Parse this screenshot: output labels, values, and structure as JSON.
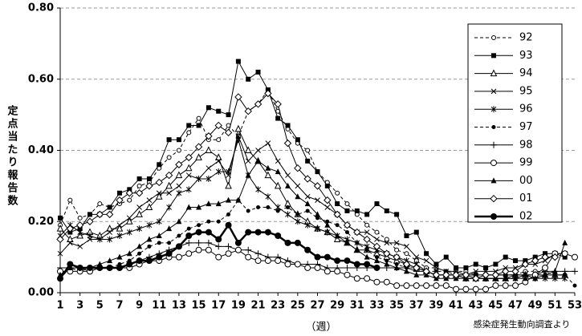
{
  "chart_data": {
    "type": "line",
    "y_axis_title": "定点当たり報告数",
    "x_axis_title": "（週）",
    "source": "感染症発生動向調査より",
    "xlim": [
      1,
      53
    ],
    "xticks": [
      1,
      3,
      5,
      7,
      9,
      11,
      13,
      15,
      17,
      19,
      21,
      23,
      25,
      27,
      29,
      31,
      33,
      35,
      37,
      39,
      41,
      43,
      45,
      47,
      49,
      51,
      53
    ],
    "ylim": [
      0,
      0.8
    ],
    "yticks": [
      {
        "value": 0,
        "label": "0.00"
      },
      {
        "value": 0.2,
        "label": "0.20"
      },
      {
        "value": 0.4,
        "label": "0.40"
      },
      {
        "value": 0.6,
        "label": "0.60"
      },
      {
        "value": 0.8,
        "label": "0.80"
      }
    ],
    "grid": true,
    "legend_position": "right",
    "x": [
      1,
      2,
      3,
      4,
      5,
      6,
      7,
      8,
      9,
      10,
      11,
      12,
      13,
      14,
      15,
      16,
      17,
      18,
      19,
      20,
      21,
      22,
      23,
      24,
      25,
      26,
      27,
      28,
      29,
      30,
      31,
      32,
      33,
      34,
      35,
      36,
      37,
      38,
      39,
      40,
      41,
      42,
      43,
      44,
      45,
      46,
      47,
      48,
      49,
      50,
      51,
      52,
      53
    ],
    "series": [
      {
        "name": "92",
        "color": "#000000",
        "marker": "circle-open-small",
        "dash": true,
        "width": 1,
        "values": [
          0.19,
          0.26,
          0.21,
          0.22,
          0.25,
          0.24,
          0.25,
          0.26,
          0.3,
          0.31,
          0.35,
          0.38,
          0.4,
          0.45,
          0.49,
          0.43,
          0.43,
          0.47,
          0.44,
          0.51,
          0.53,
          0.57,
          0.51,
          0.46,
          0.42,
          0.4,
          0.34,
          0.31,
          0.28,
          0.25,
          0.22,
          0.19,
          0.17,
          0.15,
          0.12,
          0.11,
          0.09,
          0.07,
          0.07,
          0.06,
          0.06,
          0.06,
          0.05,
          0.05,
          0.05,
          0.05,
          0.05,
          0.06,
          0.06,
          0.06,
          0.05,
          0.05,
          null
        ]
      },
      {
        "name": "93",
        "color": "#000000",
        "marker": "square-filled",
        "dash": false,
        "width": 1,
        "values": [
          0.21,
          0.17,
          0.18,
          0.22,
          0.22,
          0.24,
          0.28,
          0.29,
          0.32,
          0.32,
          0.36,
          0.43,
          0.43,
          0.47,
          0.47,
          0.52,
          0.51,
          0.5,
          0.65,
          0.6,
          0.62,
          0.57,
          0.49,
          0.47,
          0.43,
          0.37,
          0.34,
          0.3,
          0.25,
          0.23,
          0.23,
          0.22,
          0.25,
          0.23,
          0.22,
          0.16,
          0.17,
          0.11,
          0.08,
          0.1,
          0.07,
          0.07,
          0.08,
          0.07,
          0.08,
          0.1,
          0.09,
          0.09,
          0.1,
          0.11,
          0.11,
          0.1,
          null
        ]
      },
      {
        "name": "94",
        "color": "#000000",
        "marker": "triangle-open",
        "dash": false,
        "width": 1,
        "values": [
          0.18,
          0.15,
          0.16,
          0.17,
          0.16,
          0.18,
          0.18,
          0.2,
          0.22,
          0.24,
          0.27,
          0.3,
          0.33,
          0.35,
          0.38,
          0.4,
          0.38,
          0.3,
          0.46,
          0.4,
          0.37,
          0.33,
          0.3,
          0.25,
          0.22,
          0.2,
          0.18,
          0.17,
          0.15,
          0.14,
          0.12,
          0.12,
          0.11,
          0.1,
          0.09,
          0.08,
          0.07,
          0.06,
          0.05,
          0.05,
          0.05,
          0.04,
          0.04,
          0.04,
          0.04,
          0.04,
          0.05,
          0.05,
          0.05,
          0.05,
          0.05,
          0.05,
          null
        ]
      },
      {
        "name": "95",
        "color": "#000000",
        "marker": "x",
        "dash": false,
        "width": 1,
        "values": [
          0.11,
          0.14,
          0.13,
          0.15,
          0.15,
          0.17,
          0.19,
          0.21,
          0.24,
          0.26,
          0.28,
          0.28,
          0.3,
          0.33,
          0.32,
          0.35,
          0.37,
          0.33,
          0.44,
          0.37,
          0.4,
          0.42,
          0.37,
          0.33,
          0.3,
          0.27,
          0.26,
          0.24,
          0.22,
          0.19,
          0.17,
          0.17,
          0.15,
          0.14,
          0.14,
          0.13,
          0.1,
          0.09,
          0.07,
          0.06,
          0.06,
          0.05,
          0.06,
          0.06,
          0.06,
          0.07,
          0.07,
          0.08,
          0.08,
          0.09,
          0.11,
          0.11,
          null
        ]
      },
      {
        "name": "96",
        "color": "#000000",
        "marker": "asterisk",
        "dash": false,
        "width": 1,
        "values": [
          0.16,
          0.19,
          0.17,
          0.16,
          0.15,
          0.15,
          0.16,
          0.17,
          0.18,
          0.19,
          0.2,
          0.24,
          0.28,
          0.29,
          0.32,
          0.32,
          0.34,
          0.34,
          0.43,
          0.33,
          0.29,
          0.27,
          0.24,
          0.22,
          0.2,
          0.19,
          0.18,
          0.17,
          0.16,
          0.15,
          0.14,
          0.13,
          0.12,
          0.11,
          0.1,
          0.09,
          0.08,
          0.06,
          0.05,
          0.05,
          0.05,
          0.04,
          0.04,
          0.04,
          0.04,
          0.04,
          0.04,
          0.05,
          0.04,
          0.04,
          0.04,
          0.04,
          null
        ]
      },
      {
        "name": "97",
        "color": "#000000",
        "marker": "circle-filled",
        "dash": true,
        "width": 1,
        "values": [
          0.04,
          0.07,
          0.06,
          0.07,
          0.07,
          0.07,
          0.08,
          0.09,
          0.11,
          0.13,
          0.14,
          0.14,
          0.16,
          0.18,
          0.19,
          0.2,
          0.2,
          0.22,
          0.26,
          0.23,
          0.24,
          0.24,
          0.23,
          0.24,
          0.22,
          0.23,
          0.21,
          0.2,
          0.19,
          0.17,
          0.14,
          0.12,
          0.1,
          0.09,
          0.08,
          0.07,
          0.07,
          0.06,
          0.06,
          0.06,
          0.05,
          0.05,
          0.05,
          0.05,
          0.05,
          0.05,
          0.05,
          0.05,
          0.05,
          0.05,
          0.05,
          0.05,
          0.02
        ]
      },
      {
        "name": "98",
        "color": "#000000",
        "marker": "plus",
        "dash": false,
        "width": 1,
        "values": [
          0.07,
          0.07,
          0.07,
          0.06,
          0.07,
          0.07,
          0.07,
          0.08,
          0.09,
          0.1,
          0.11,
          0.12,
          0.13,
          0.14,
          0.14,
          0.14,
          0.13,
          0.13,
          0.12,
          0.12,
          0.11,
          0.1,
          0.1,
          0.09,
          0.08,
          0.08,
          0.08,
          0.07,
          0.07,
          0.07,
          0.07,
          0.07,
          0.07,
          0.07,
          0.07,
          0.07,
          0.06,
          0.06,
          0.05,
          0.05,
          0.05,
          0.05,
          0.05,
          0.05,
          0.05,
          0.05,
          0.05,
          0.05,
          0.05,
          0.06,
          0.06,
          0.06,
          0.06
        ]
      },
      {
        "name": "99",
        "color": "#000000",
        "marker": "circle-open",
        "dash": false,
        "width": 1,
        "values": [
          0.06,
          0.06,
          0.06,
          0.06,
          0.07,
          0.07,
          0.07,
          0.07,
          0.08,
          0.09,
          0.09,
          0.1,
          0.1,
          0.11,
          0.12,
          0.12,
          0.1,
          0.11,
          0.12,
          0.1,
          0.09,
          0.09,
          0.09,
          0.08,
          0.08,
          0.07,
          0.07,
          0.06,
          0.06,
          0.05,
          0.04,
          0.04,
          0.03,
          0.03,
          0.02,
          0.02,
          0.02,
          0.02,
          0.02,
          0.02,
          0.01,
          0.01,
          0.01,
          0.01,
          0.02,
          0.02,
          0.02,
          0.03,
          0.05,
          0.07,
          0.11,
          0.11,
          0.1
        ]
      },
      {
        "name": "00",
        "color": "#000000",
        "marker": "triangle-filled",
        "dash": false,
        "width": 1,
        "values": [
          0.05,
          0.07,
          0.07,
          0.07,
          0.08,
          0.09,
          0.1,
          0.11,
          0.13,
          0.15,
          0.16,
          0.18,
          0.2,
          0.24,
          0.24,
          0.25,
          0.25,
          0.26,
          0.26,
          0.33,
          0.37,
          0.35,
          0.34,
          0.3,
          0.27,
          0.25,
          0.22,
          0.19,
          0.16,
          0.14,
          0.12,
          0.1,
          0.09,
          0.08,
          0.07,
          0.06,
          0.05,
          0.05,
          0.04,
          0.04,
          0.04,
          0.04,
          0.04,
          0.04,
          0.04,
          0.04,
          0.04,
          0.04,
          0.04,
          0.05,
          0.06,
          0.14,
          null
        ]
      },
      {
        "name": "01",
        "color": "#000000",
        "marker": "diamond-open",
        "dash": false,
        "width": 1,
        "values": [
          0.15,
          0.18,
          0.19,
          0.2,
          0.22,
          0.22,
          0.26,
          0.28,
          0.28,
          0.3,
          0.31,
          0.33,
          0.36,
          0.38,
          0.41,
          0.44,
          0.47,
          0.45,
          0.55,
          0.51,
          0.53,
          0.56,
          0.53,
          0.42,
          0.35,
          0.32,
          0.3,
          0.26,
          0.22,
          0.19,
          0.17,
          0.15,
          0.13,
          0.11,
          0.1,
          0.08,
          0.07,
          0.06,
          0.05,
          0.05,
          0.05,
          0.05,
          0.04,
          0.05,
          0.05,
          0.06,
          0.06,
          0.08,
          0.09,
          0.1,
          0.1,
          null,
          null
        ]
      },
      {
        "name": "02",
        "color": "#000000",
        "marker": "circle-filled-large",
        "dash": false,
        "width": 2.5,
        "values": [
          0.04,
          0.08,
          0.07,
          0.07,
          0.07,
          0.07,
          0.07,
          0.08,
          0.09,
          0.09,
          0.1,
          0.11,
          0.13,
          0.16,
          0.17,
          0.17,
          0.15,
          0.19,
          0.14,
          0.17,
          0.17,
          0.17,
          0.16,
          0.14,
          0.14,
          0.12,
          0.1,
          0.1,
          0.09,
          0.09,
          0.08,
          0.08,
          0.07,
          null,
          null,
          null,
          null,
          null,
          null,
          null,
          null,
          null,
          null,
          null,
          null,
          null,
          null,
          null,
          null,
          null,
          null,
          null,
          null
        ]
      }
    ]
  }
}
